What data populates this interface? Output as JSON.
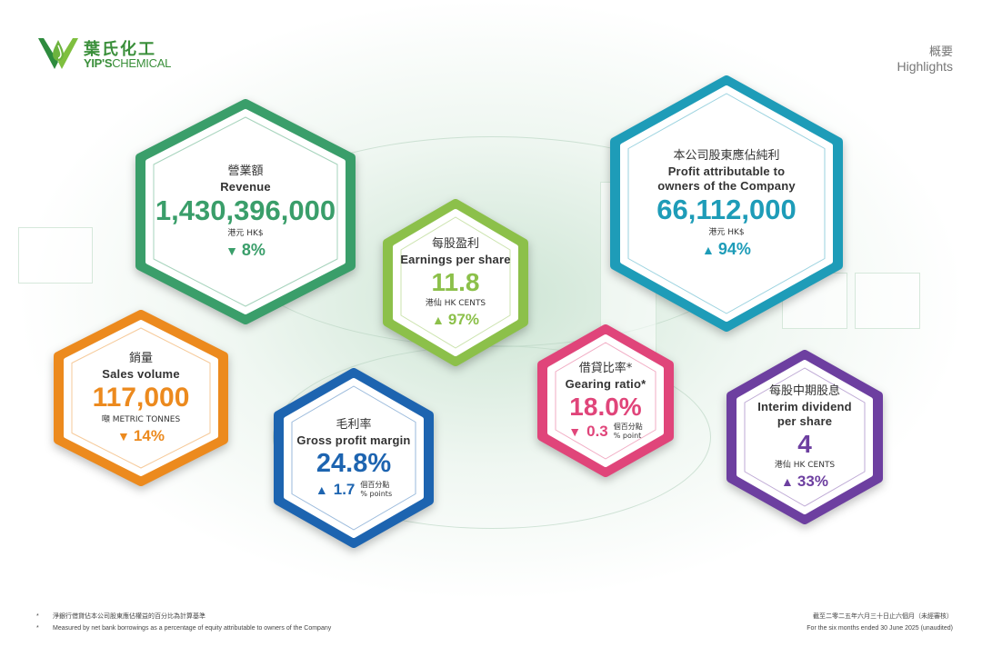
{
  "logo": {
    "cn": "葉氏化工",
    "en_bold": "YIP'S",
    "en_rest": "CHEMICAL"
  },
  "corner": {
    "cn": "概要",
    "en": "Highlights"
  },
  "cards": {
    "revenue": {
      "cn": "營業額",
      "en": "Revenue",
      "value": "1,430,396,000",
      "unit": "港元 HK$",
      "direction": "down",
      "change": "8%",
      "color": "#3a9e6a"
    },
    "eps": {
      "cn": "每股盈利",
      "en": "Earnings per share",
      "value": "11.8",
      "unit": "港仙 HK CENTS",
      "direction": "up",
      "change": "97%",
      "color": "#8cc04a"
    },
    "profit": {
      "cn": "本公司股東應佔純利",
      "en1": "Profit attributable to",
      "en2": "owners of the Company",
      "value": "66,112,000",
      "unit": "港元 HK$",
      "direction": "up",
      "change": "94%",
      "color": "#1e9cb8"
    },
    "sales": {
      "cn": "銷量",
      "en": "Sales volume",
      "value": "117,000",
      "unit": "噸 METRIC TONNES",
      "direction": "down",
      "change": "14%",
      "color": "#ec8a1e"
    },
    "gpm": {
      "cn": "毛利率",
      "en": "Gross profit margin",
      "value": "24.8%",
      "direction": "up",
      "change": "1.7",
      "pt_cn": "個百分點",
      "pt_en": "% points",
      "color": "#1d64b0"
    },
    "gearing": {
      "cn": "借貸比率*",
      "en": "Gearing ratio*",
      "value": "18.0%",
      "direction": "down",
      "change": "0.3",
      "pt_cn": "個百分點",
      "pt_en": "% point",
      "color": "#e0457a"
    },
    "dividend": {
      "cn": "每股中期股息",
      "en1": "Interim dividend",
      "en2": "per share",
      "value": "4",
      "unit": "港仙 HK CENTS",
      "direction": "up",
      "change": "33%",
      "color": "#6d3fa0"
    }
  },
  "footnote": {
    "star": "*",
    "cn": "淨銀行借貸佔本公司股東應佔權益的百分比為計算基準",
    "en": "Measured by net bank borrowings as a percentage of equity attributable to owners of the Company"
  },
  "period": {
    "cn": "截至二零二五年六月三十日止六個月（未經審核）",
    "en": "For the six months ended 30 June 2025 (unaudited)"
  }
}
